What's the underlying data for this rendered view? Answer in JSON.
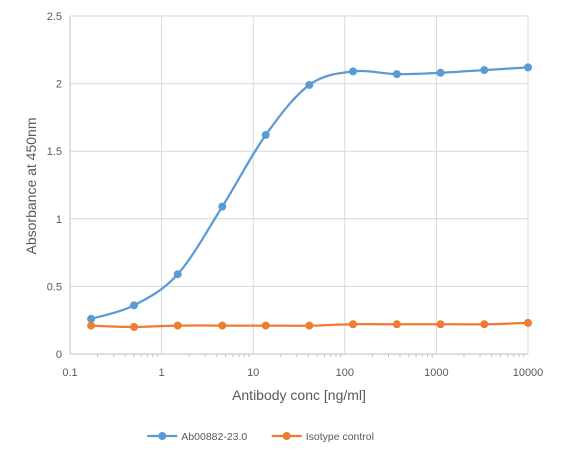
{
  "chart_data": {
    "type": "line",
    "title": "",
    "xlabel": "Antibody conc [ng/ml]",
    "ylabel": "Absorbance at 450nm",
    "x_scale": "log",
    "xlim": [
      0.1,
      10000
    ],
    "ylim": [
      0,
      2.5
    ],
    "x_ticks": [
      0.1,
      1,
      10,
      100,
      1000,
      10000
    ],
    "x_tick_labels": [
      "0.1",
      "1",
      "10",
      "100",
      "1000",
      "10000"
    ],
    "y_ticks": [
      0,
      0.5,
      1,
      1.5,
      2,
      2.5
    ],
    "y_tick_labels": [
      "0",
      "0.5",
      "1",
      "1.5",
      "2",
      "2.5"
    ],
    "grid": true,
    "legend_position": "bottom",
    "series": [
      {
        "name": "Ab00882-23.0",
        "color": "#5B9BD5",
        "x": [
          0.17,
          0.5,
          1.5,
          4.6,
          13.7,
          41,
          123,
          370,
          1110,
          3330,
          10000
        ],
        "y": [
          0.26,
          0.36,
          0.59,
          1.09,
          1.62,
          1.99,
          2.09,
          2.07,
          2.08,
          2.1,
          2.12
        ]
      },
      {
        "name": "Isotype control",
        "color": "#ED7D31",
        "x": [
          0.17,
          0.5,
          1.5,
          4.6,
          13.7,
          41,
          123,
          370,
          1110,
          3330,
          10000
        ],
        "y": [
          0.21,
          0.2,
          0.21,
          0.21,
          0.21,
          0.21,
          0.22,
          0.22,
          0.22,
          0.22,
          0.23
        ]
      }
    ]
  }
}
